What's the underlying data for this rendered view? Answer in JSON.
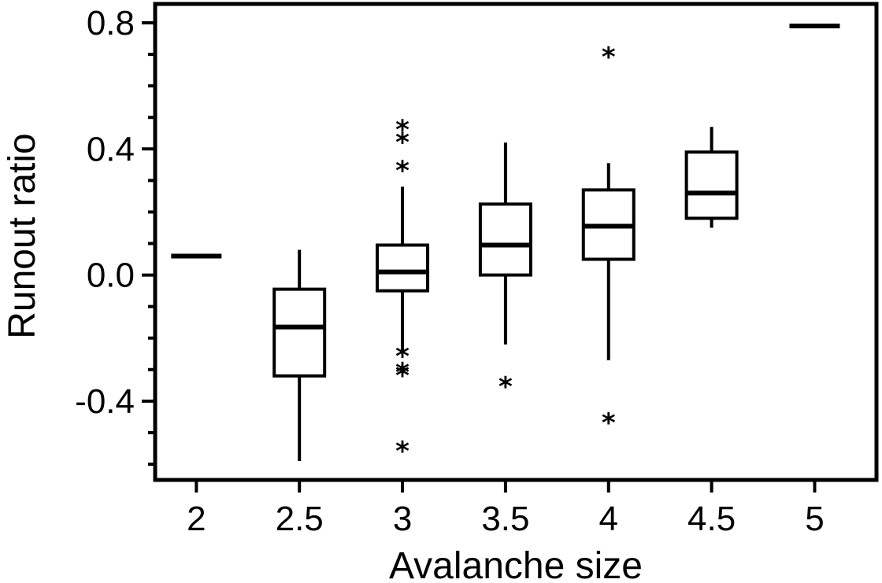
{
  "chart_data": {
    "type": "box",
    "xlabel": "Avalanche size",
    "ylabel": "Runout ratio",
    "xlim": [
      1.8,
      5.3
    ],
    "ylim": [
      -0.65,
      0.86
    ],
    "x_ticks": [
      {
        "value": 2,
        "label": "2"
      },
      {
        "value": 2.5,
        "label": "2.5"
      },
      {
        "value": 3,
        "label": "3"
      },
      {
        "value": 3.5,
        "label": "3.5"
      },
      {
        "value": 4,
        "label": "4"
      },
      {
        "value": 4.5,
        "label": "4.5"
      },
      {
        "value": 5,
        "label": "5"
      }
    ],
    "y_major_ticks": [
      {
        "value": 0.8,
        "label": "0.8"
      },
      {
        "value": 0.4,
        "label": "0.4"
      },
      {
        "value": 0.0,
        "label": "0.0"
      },
      {
        "value": -0.4,
        "label": "-0.4"
      }
    ],
    "y_minor_step": 0.1,
    "y_minor_range": [
      -0.6,
      0.8
    ],
    "groups": [
      {
        "x": 2,
        "single": 0.06
      },
      {
        "x": 2.5,
        "whisker_low": -0.59,
        "q1": -0.32,
        "median": -0.165,
        "q3": -0.045,
        "whisker_high": 0.08,
        "outliers": []
      },
      {
        "x": 3,
        "whisker_low": -0.24,
        "q1": -0.05,
        "median": 0.01,
        "q3": 0.095,
        "whisker_high": 0.28,
        "outliers": [
          0.47,
          0.43,
          0.34,
          -0.25,
          -0.3,
          -0.31,
          -0.55
        ]
      },
      {
        "x": 3.5,
        "whisker_low": -0.22,
        "q1": 0.0,
        "median": 0.095,
        "q3": 0.225,
        "whisker_high": 0.42,
        "outliers": [
          -0.345
        ]
      },
      {
        "x": 4,
        "whisker_low": -0.27,
        "q1": 0.05,
        "median": 0.155,
        "q3": 0.27,
        "whisker_high": 0.355,
        "outliers": [
          0.7,
          -0.46
        ]
      },
      {
        "x": 4.5,
        "whisker_low": 0.15,
        "q1": 0.18,
        "median": 0.26,
        "q3": 0.39,
        "whisker_high": 0.47,
        "outliers": []
      },
      {
        "x": 5,
        "single": 0.79
      }
    ]
  }
}
